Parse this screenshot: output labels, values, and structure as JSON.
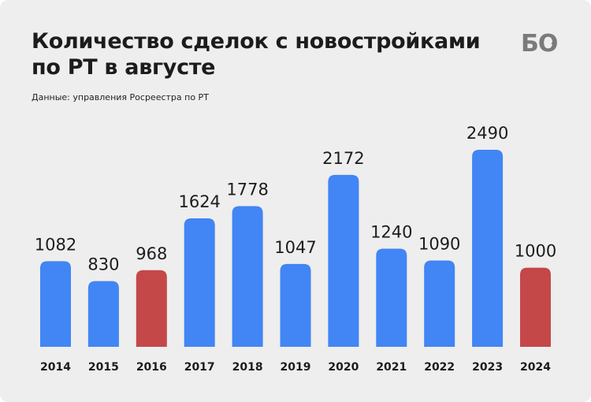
{
  "header": {
    "title": "Количество сделок с новостройками\nпо РТ в августе",
    "source": "Данные: управления Росреестра по РТ",
    "logo_text": "БО"
  },
  "colors": {
    "background": "#eeeeee",
    "bar_default": "#4285f4",
    "bar_highlight": "#c44848",
    "text": "#1c1c1c",
    "logo": "#7a7a7a"
  },
  "chart_data": {
    "type": "bar",
    "title": "Количество сделок с новостройками по РТ в августе",
    "categories": [
      "2014",
      "2015",
      "2016",
      "2017",
      "2018",
      "2019",
      "2020",
      "2021",
      "2022",
      "2023",
      "2024"
    ],
    "values": [
      1082,
      830,
      968,
      1624,
      1778,
      1047,
      2172,
      1240,
      1090,
      2490,
      1000
    ],
    "highlighted": [
      "2016",
      "2024"
    ],
    "data_labels": true,
    "grid": false,
    "ylim": [
      0,
      2490
    ]
  }
}
